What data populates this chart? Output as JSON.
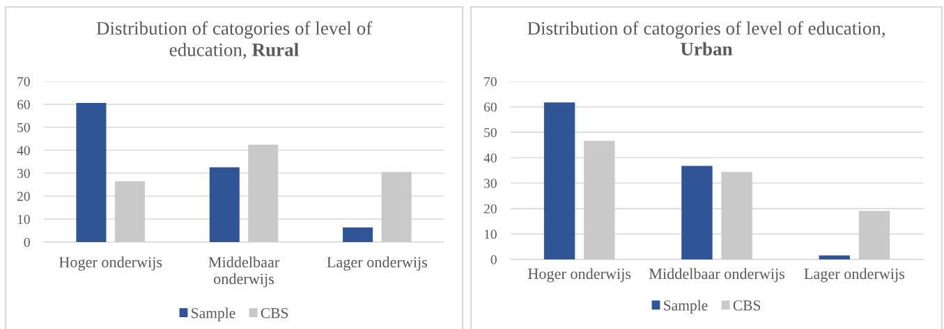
{
  "chart_data": [
    {
      "type": "bar",
      "title": "Distribution of catogories of level of education, Rural",
      "categories": [
        "Hoger onderwijs",
        "Middelbaar onderwijs",
        "Lager onderwijs"
      ],
      "series": [
        {
          "name": "Sample",
          "color": "#2f5597",
          "values": [
            60.6,
            32.6,
            6.4
          ]
        },
        {
          "name": "CBS",
          "color": "#c9c9c9",
          "values": [
            26.5,
            42.4,
            30.5
          ]
        }
      ],
      "ylim": [
        0,
        70
      ],
      "yticks": [
        0,
        10,
        20,
        30,
        40,
        50,
        60,
        70
      ],
      "grid": "y",
      "legend": "bottom"
    },
    {
      "type": "bar",
      "title": "Distribution of catogories of level of education, Urban",
      "categories": [
        "Hoger onderwijs",
        "Middelbaar onderwijs",
        "Lager onderwijs"
      ],
      "series": [
        {
          "name": "Sample",
          "color": "#2f5597",
          "values": [
            61.7,
            36.8,
            1.6
          ]
        },
        {
          "name": "CBS",
          "color": "#c9c9c9",
          "values": [
            46.6,
            34.4,
            19.1
          ]
        }
      ],
      "ylim": [
        0,
        70
      ],
      "yticks": [
        0,
        10,
        20,
        30,
        40,
        50,
        60,
        70
      ],
      "grid": "y",
      "legend": "bottom"
    }
  ]
}
